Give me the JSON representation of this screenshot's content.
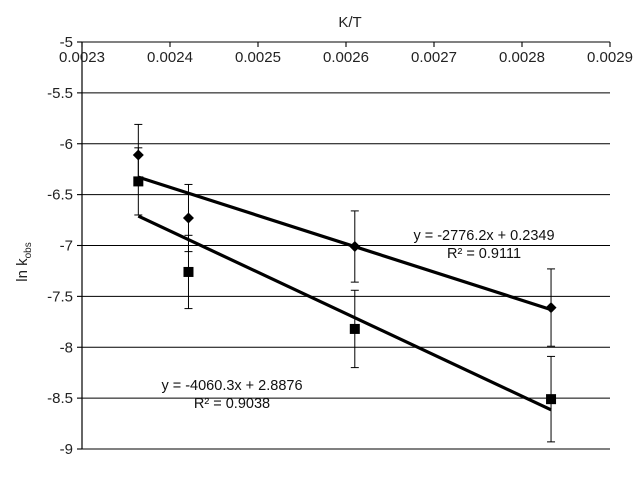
{
  "chart_data": {
    "type": "scatter",
    "title": "",
    "xlabel": "K/T",
    "ylabel_main": "ln k",
    "ylabel_sub": "obs",
    "x_ticks": [
      "0.0023",
      "0.0024",
      "0.0025",
      "0.0026",
      "0.0027",
      "0.0028",
      "0.0029"
    ],
    "y_ticks": [
      "-5",
      "-5.5",
      "-6",
      "-6.5",
      "-7",
      "-7.5",
      "-8",
      "-8.5",
      "-9"
    ],
    "xlim": [
      0.0023,
      0.0029
    ],
    "ylim": [
      -9,
      -5
    ],
    "x_axis_position": "top",
    "grid": "horizontal",
    "series": [
      {
        "marker": "diamond",
        "points": [
          {
            "x": 0.002364,
            "y": -6.11,
            "err": 0.3
          },
          {
            "x": 0.002421,
            "y": -6.73,
            "err": 0.33
          },
          {
            "x": 0.00261,
            "y": -7.01,
            "err": 0.35
          },
          {
            "x": 0.002833,
            "y": -7.61,
            "err": 0.38
          }
        ],
        "trendline": {
          "slope": -2776.2,
          "intercept": 0.2349,
          "x_start": 0.002364,
          "x_end": 0.002833
        }
      },
      {
        "marker": "square",
        "points": [
          {
            "x": 0.002364,
            "y": -6.37,
            "err": 0.33
          },
          {
            "x": 0.002421,
            "y": -7.26,
            "err": 0.36
          },
          {
            "x": 0.00261,
            "y": -7.82,
            "err": 0.38
          },
          {
            "x": 0.002833,
            "y": -8.51,
            "err": 0.42
          }
        ],
        "trendline": {
          "slope": -4060.3,
          "intercept": 2.8876,
          "x_start": 0.002364,
          "x_end": 0.002833
        }
      }
    ],
    "annotations": [
      {
        "equation": "y = -2776.2x + 0.2349",
        "r_squared": "R² = 0.9111"
      },
      {
        "equation": "y = -4060.3x + 2.8876",
        "r_squared": "R² = 0.9038"
      }
    ]
  }
}
